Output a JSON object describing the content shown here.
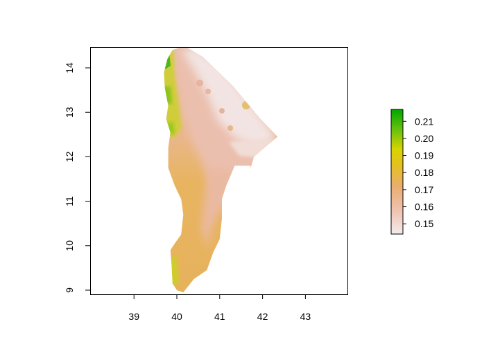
{
  "map": {
    "x_axis": {
      "ticks": [
        "39",
        "40",
        "41",
        "42",
        "43"
      ],
      "tick_values": [
        39,
        40,
        41,
        42,
        43
      ],
      "range": [
        38.0,
        44.0
      ]
    },
    "y_axis": {
      "ticks": [
        "9",
        "10",
        "11",
        "12",
        "13",
        "14"
      ],
      "tick_values": [
        9,
        10,
        11,
        12,
        13,
        14
      ],
      "range": [
        8.9,
        14.45
      ]
    },
    "raster": {
      "region_outline_lonlat": [
        [
          40.05,
          14.45
        ],
        [
          40.25,
          14.45
        ],
        [
          40.6,
          14.25
        ],
        [
          41.3,
          13.6
        ],
        [
          41.95,
          12.85
        ],
        [
          42.35,
          12.45
        ],
        [
          42.1,
          12.25
        ],
        [
          41.8,
          12.0
        ],
        [
          41.72,
          11.75
        ],
        [
          41.72,
          11.8
        ],
        [
          41.35,
          11.8
        ],
        [
          41.15,
          11.35
        ],
        [
          41.05,
          11.05
        ],
        [
          41.05,
          10.6
        ],
        [
          41.0,
          10.15
        ],
        [
          40.85,
          9.85
        ],
        [
          40.7,
          9.45
        ],
        [
          40.4,
          9.25
        ],
        [
          40.15,
          8.95
        ],
        [
          40.0,
          9.0
        ],
        [
          39.9,
          9.15
        ],
        [
          39.88,
          9.55
        ],
        [
          39.85,
          9.9
        ],
        [
          39.95,
          10.05
        ],
        [
          40.1,
          10.25
        ],
        [
          40.15,
          10.7
        ],
        [
          40.1,
          11.05
        ],
        [
          39.95,
          11.35
        ],
        [
          39.8,
          11.75
        ],
        [
          39.8,
          12.2
        ],
        [
          39.85,
          12.55
        ],
        [
          39.75,
          12.85
        ],
        [
          39.8,
          13.15
        ],
        [
          39.72,
          13.55
        ],
        [
          39.7,
          13.9
        ],
        [
          39.78,
          14.2
        ],
        [
          39.9,
          14.4
        ]
      ],
      "color_stops": [
        "#f2e6e6",
        "#eebfa8",
        "#e5b55a",
        "#d6d100",
        "#5cbf12",
        "#00a600"
      ]
    },
    "legend": {
      "labels": [
        "0.21",
        "0.20",
        "0.19",
        "0.18",
        "0.17",
        "0.16",
        "0.15"
      ],
      "values": [
        0.21,
        0.2,
        0.19,
        0.18,
        0.17,
        0.16,
        0.15
      ],
      "range": [
        0.144,
        0.217
      ],
      "colors": [
        "#00a600",
        "#22ac06",
        "#63c10e",
        "#d1d400",
        "#e6c120",
        "#e8ad68",
        "#f0c2ac",
        "#f2ebeb"
      ]
    }
  }
}
